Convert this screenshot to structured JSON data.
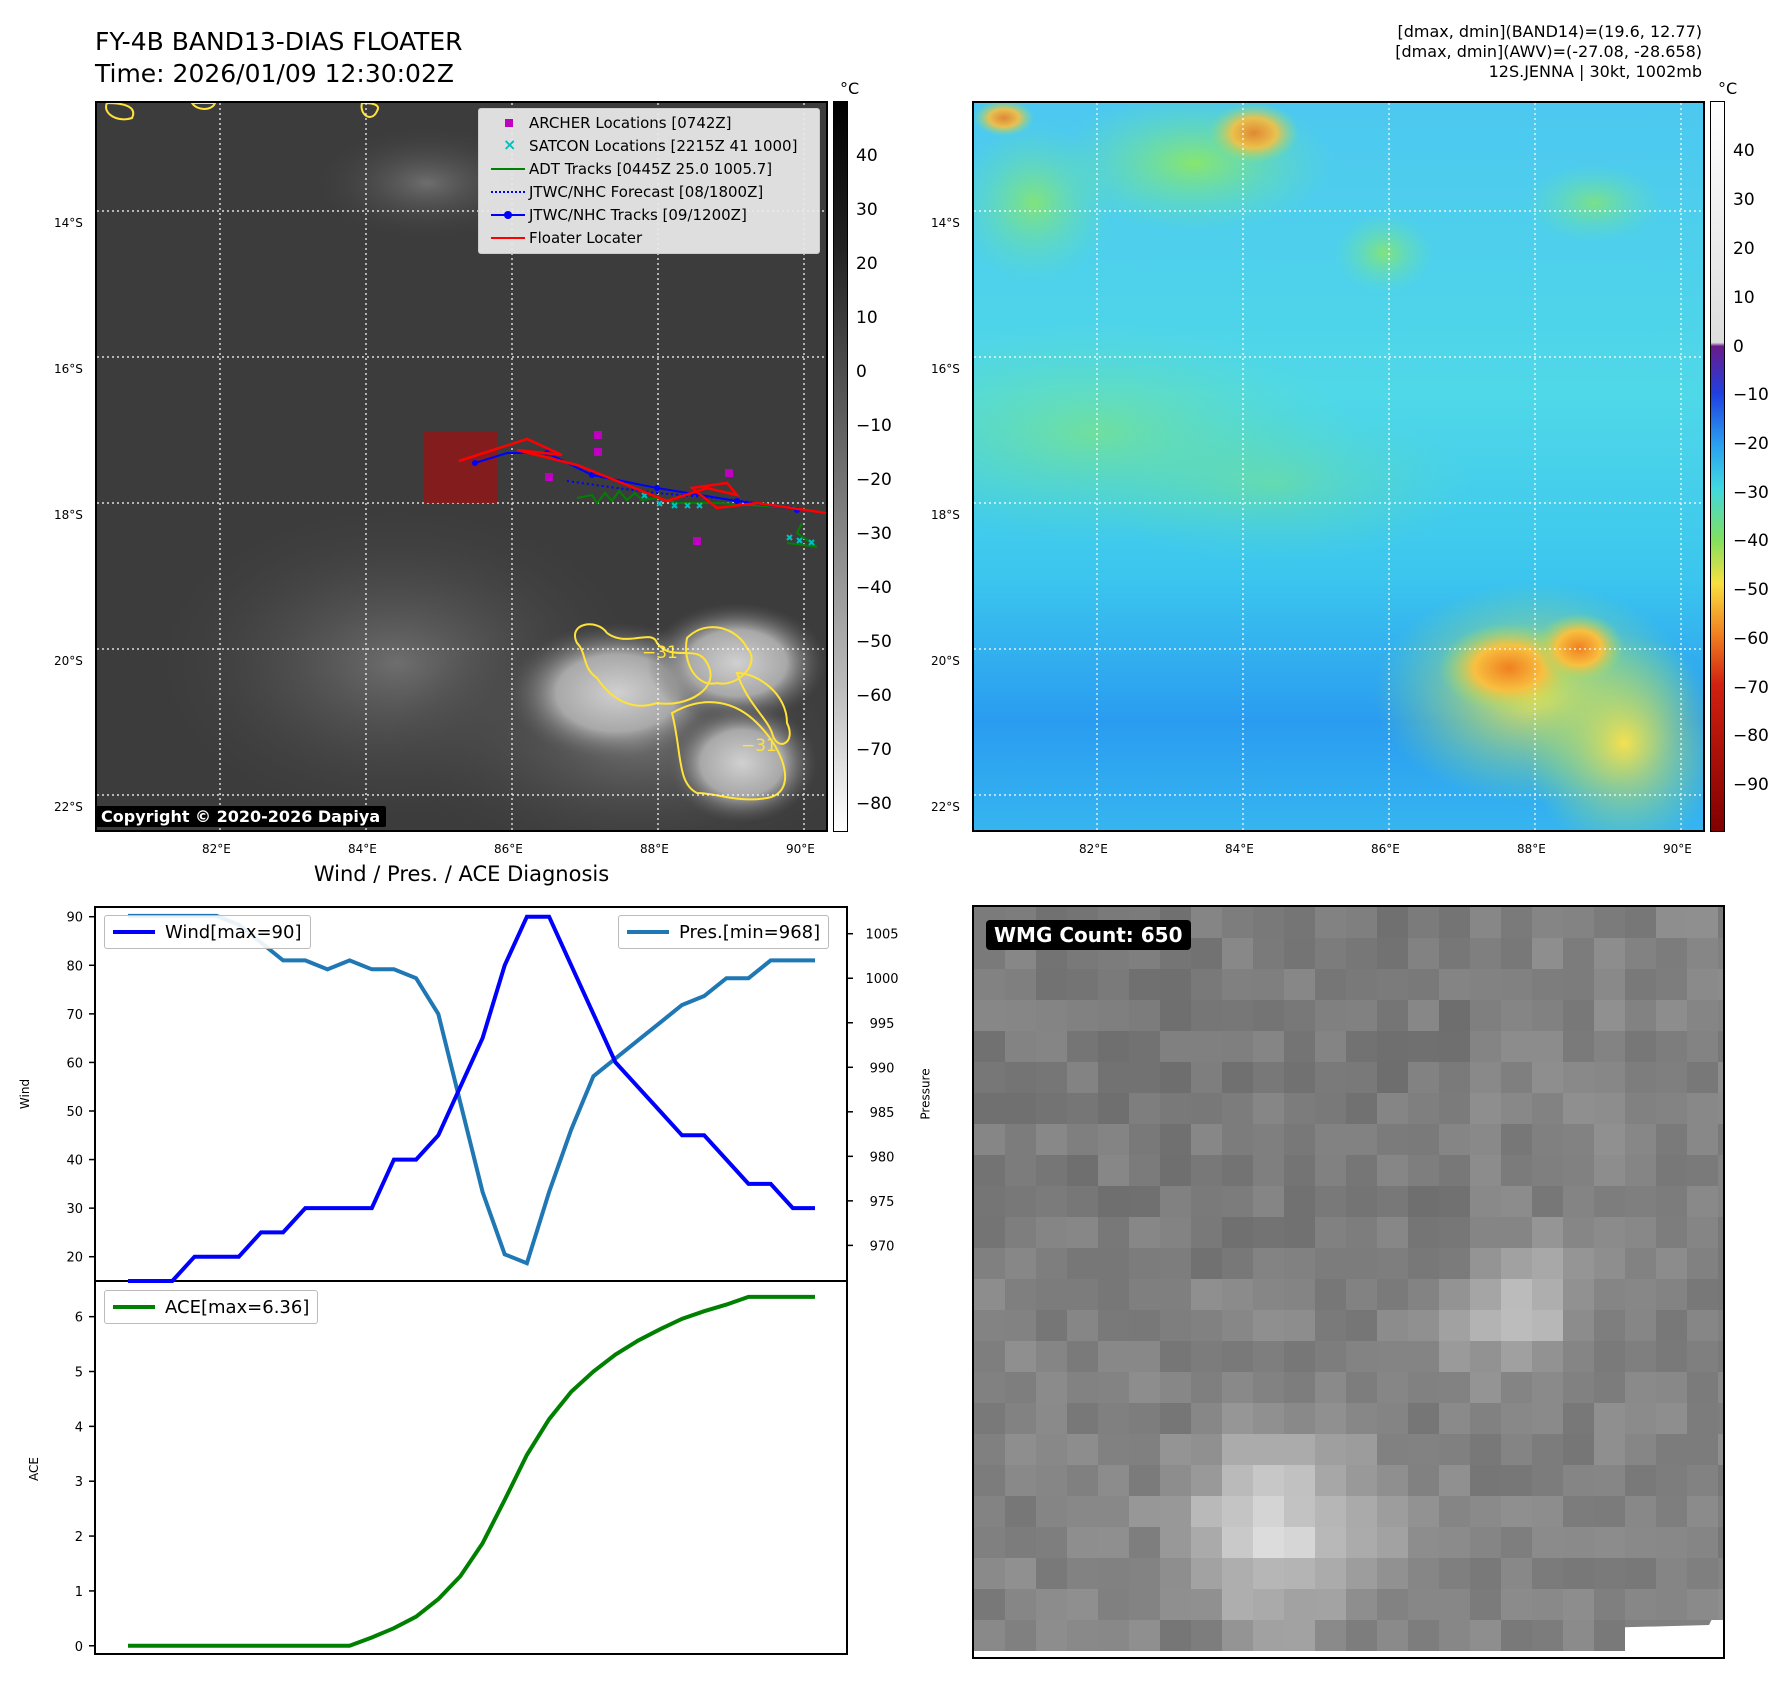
{
  "header": {
    "title_line1": "FY-4B BAND13-DIAS FLOATER",
    "title_line2": "Time: 2026/01/09 12:30:02Z",
    "right_line1": "[dmax, dmin](BAND14)=(19.6, 12.77)",
    "right_line2": "[dmax, dmin](AWV)=(-27.08, -28.658)",
    "right_line3": "12S.JENNA | 30kt, 1002mb"
  },
  "map_axes": {
    "lat_labels": [
      "14°S",
      "16°S",
      "18°S",
      "20°S",
      "22°S"
    ],
    "lon_labels": [
      "82°E",
      "84°E",
      "86°E",
      "88°E",
      "90°E"
    ]
  },
  "ir_colorbar": {
    "unit": "°C",
    "ticks": [
      "40",
      "30",
      "20",
      "10",
      "0",
      "−10",
      "−20",
      "−30",
      "−40",
      "−50",
      "−60",
      "−70",
      "−80"
    ]
  },
  "awv_colorbar": {
    "unit": "°C",
    "ticks": [
      "40",
      "30",
      "20",
      "10",
      "0",
      "−10",
      "−20",
      "−30",
      "−40",
      "−50",
      "−60",
      "−70",
      "−80",
      "−90"
    ]
  },
  "legend": {
    "items": [
      {
        "label": "ARCHER Locations [0742Z]",
        "color": "#c000c0",
        "symbol": "square"
      },
      {
        "label": "SATCON Locations [2215Z 41 1000]",
        "color": "#00c0c0",
        "symbol": "x"
      },
      {
        "label": "ADT Tracks [0445Z 25.0 1005.7]",
        "color": "#008000",
        "symbol": "line"
      },
      {
        "label": "JTWC/NHC Forecast [08/1800Z]",
        "color": "#0000ff",
        "symbol": "dotted"
      },
      {
        "label": "JTWC/NHC Tracks [09/1200Z]",
        "color": "#0000ff",
        "symbol": "line-dot"
      },
      {
        "label": "Floater Locater",
        "color": "#ff0000",
        "symbol": "line"
      }
    ]
  },
  "copyright": "Copyright © 2020-2026 Dapiya",
  "contour_label": "−31",
  "wmg": {
    "label": "WMG Count: 650"
  },
  "diagnosis_title": "Wind / Pres. / ACE Diagnosis",
  "chart_data": [
    {
      "type": "line",
      "title": "Wind / Pres. / ACE Diagnosis",
      "ylabel": "Wind",
      "ylabel_right": "Pressure",
      "ylim": [
        15,
        92
      ],
      "ylim_right": [
        966,
        1008
      ],
      "y_ticks": [
        20,
        30,
        40,
        50,
        60,
        70,
        80,
        90
      ],
      "y_ticks_right": [
        970,
        975,
        980,
        985,
        990,
        995,
        1000,
        1005
      ],
      "series": [
        {
          "name": "Wind[max=90]",
          "color": "#0000ff",
          "axis": "left",
          "values": [
            15,
            15,
            15,
            20,
            20,
            20,
            25,
            25,
            30,
            30,
            30,
            30,
            40,
            40,
            45,
            55,
            65,
            80,
            90,
            90,
            80,
            70,
            60,
            55,
            50,
            45,
            45,
            40,
            35,
            35,
            30,
            30
          ]
        },
        {
          "name": "Pres.[min=968]",
          "color": "#1f77b4",
          "axis": "right",
          "values": [
            1007,
            1007,
            1007,
            1007,
            1007,
            1006,
            1004,
            1002,
            1002,
            1001,
            1002,
            1001,
            1001,
            1000,
            996,
            986,
            976,
            969,
            968,
            976,
            983,
            989,
            991,
            993,
            995,
            997,
            998,
            1000,
            1000,
            1002,
            1002,
            1002
          ]
        }
      ]
    },
    {
      "type": "line",
      "ylabel": "ACE",
      "ylim": [
        -0.15,
        6.65
      ],
      "y_ticks": [
        0,
        1,
        2,
        3,
        4,
        5,
        6
      ],
      "series": [
        {
          "name": "ACE[max=6.36]",
          "color": "#008000",
          "values": [
            0,
            0,
            0,
            0,
            0,
            0,
            0,
            0,
            0,
            0,
            0,
            0.15,
            0.32,
            0.53,
            0.85,
            1.27,
            1.87,
            2.66,
            3.48,
            4.13,
            4.63,
            5.0,
            5.31,
            5.56,
            5.77,
            5.96,
            6.1,
            6.22,
            6.36,
            6.36,
            6.36,
            6.36
          ]
        }
      ]
    }
  ]
}
